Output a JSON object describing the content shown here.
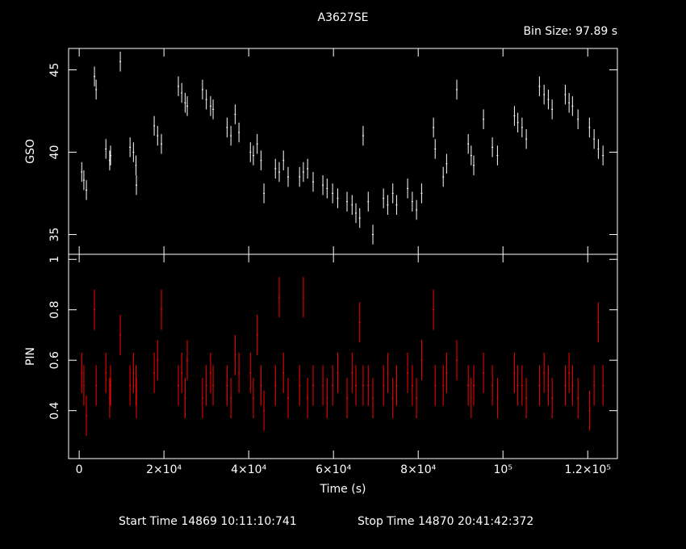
{
  "header": {
    "title": "A3627SE",
    "bin_size": "Bin Size: 97.89 s"
  },
  "footer": {
    "start": "Start Time 14869 10:11:10:741",
    "stop": "Stop Time 14870 20:41:42:372"
  },
  "chart_data": [
    {
      "type": "errorbar",
      "ylabel": "GSO",
      "color": "#ffffff",
      "ylim": [
        33.8,
        46.3
      ],
      "yticks": [
        35,
        40,
        45
      ],
      "x": [
        600,
        1100,
        1700,
        3600,
        4000,
        6300,
        7200,
        7400,
        9700,
        12000,
        12800,
        13400,
        13500,
        17700,
        18500,
        19400,
        23400,
        24200,
        25000,
        25500,
        29100,
        30000,
        31000,
        31600,
        34900,
        35800,
        36800,
        37700,
        40400,
        41100,
        42000,
        42900,
        43600,
        46300,
        47200,
        48200,
        49300,
        52000,
        52900,
        53900,
        55200,
        57500,
        58500,
        59800,
        61000,
        63200,
        64400,
        65300,
        66200,
        67000,
        68200,
        69300,
        71800,
        72800,
        74000,
        74900,
        77500,
        78600,
        79600,
        80800,
        83600,
        84000,
        85900,
        86700,
        89100,
        91800,
        92500,
        93100,
        95400,
        97500,
        98700,
        102700,
        103500,
        104500,
        105500,
        108600,
        109700,
        110700,
        111600,
        114700,
        115600,
        116400,
        117700,
        120400,
        121500,
        122500,
        123600
      ],
      "values": [
        38.8,
        38.3,
        37.7,
        44.6,
        43.8,
        40.2,
        39.5,
        39.8,
        45.5,
        40.3,
        40.0,
        39.2,
        38.0,
        41.6,
        41.0,
        40.5,
        44.0,
        43.6,
        43.0,
        42.8,
        43.8,
        43.2,
        42.8,
        42.6,
        41.5,
        41.0,
        42.3,
        41.2,
        40.0,
        39.8,
        40.5,
        39.5,
        37.5,
        39.0,
        38.8,
        39.5,
        38.5,
        38.5,
        38.8,
        39.0,
        38.2,
        38.0,
        37.8,
        37.5,
        37.2,
        37.0,
        36.8,
        36.3,
        36.0,
        41.0,
        37.0,
        35.0,
        37.2,
        36.8,
        37.5,
        36.8,
        37.8,
        37.0,
        36.5,
        37.5,
        41.5,
        40.2,
        38.5,
        39.3,
        43.8,
        40.5,
        39.8,
        39.2,
        42.0,
        40.3,
        39.8,
        42.2,
        41.8,
        41.5,
        40.8,
        44.0,
        43.5,
        43.2,
        42.6,
        43.5,
        43.0,
        42.8,
        42.0,
        41.5,
        40.8,
        40.2,
        39.8
      ],
      "yerr": 0.6
    },
    {
      "type": "errorbar",
      "ylabel": "PIN",
      "xlabel": "Time (s)",
      "color": "#ff0000",
      "ylim": [
        0.21,
        1.02
      ],
      "yticks": [
        0.4,
        0.6,
        0.8,
        1
      ],
      "xlim": [
        -2500,
        127000
      ],
      "xticks": [
        0,
        {
          "value": 20000,
          "label": "2×10⁴"
        },
        {
          "value": 40000,
          "label": "4×10⁴"
        },
        {
          "value": 60000,
          "label": "6×10⁴"
        },
        {
          "value": 80000,
          "label": "8×10⁴"
        },
        {
          "value": 100000,
          "label": "10⁵"
        },
        {
          "value": 120000,
          "label": "1.2×10⁵"
        }
      ],
      "x": [
        600,
        1100,
        1700,
        3600,
        4000,
        6300,
        7200,
        7400,
        9700,
        12000,
        12800,
        13400,
        13500,
        17700,
        18500,
        19400,
        23400,
        24200,
        25000,
        25500,
        29100,
        30000,
        31000,
        31600,
        34900,
        35800,
        36800,
        37700,
        40400,
        41100,
        42000,
        42900,
        43600,
        46300,
        47200,
        48200,
        49300,
        52000,
        52900,
        53900,
        55200,
        57500,
        58500,
        59800,
        61000,
        63200,
        64400,
        65300,
        66200,
        67000,
        68200,
        69300,
        71800,
        72800,
        74000,
        74900,
        77500,
        78600,
        79600,
        80800,
        83600,
        84000,
        85900,
        86700,
        89100,
        91800,
        92500,
        93100,
        95400,
        97500,
        98700,
        102700,
        103500,
        104500,
        105500,
        108600,
        109700,
        110700,
        111600,
        114700,
        115600,
        116400,
        117700,
        120400,
        121500,
        122500,
        123600
      ],
      "values": [
        0.55,
        0.5,
        0.38,
        0.8,
        0.5,
        0.55,
        0.45,
        0.5,
        0.7,
        0.5,
        0.55,
        0.5,
        0.45,
        0.55,
        0.6,
        0.8,
        0.5,
        0.55,
        0.45,
        0.6,
        0.45,
        0.5,
        0.55,
        0.5,
        0.5,
        0.45,
        0.62,
        0.55,
        0.55,
        0.45,
        0.7,
        0.5,
        0.4,
        0.5,
        0.85,
        0.55,
        0.45,
        0.5,
        0.85,
        0.45,
        0.5,
        0.5,
        0.45,
        0.5,
        0.55,
        0.45,
        0.55,
        0.5,
        0.75,
        0.5,
        0.5,
        0.45,
        0.5,
        0.55,
        0.45,
        0.5,
        0.55,
        0.5,
        0.45,
        0.6,
        0.8,
        0.5,
        0.5,
        0.55,
        0.6,
        0.5,
        0.45,
        0.5,
        0.55,
        0.5,
        0.45,
        0.55,
        0.5,
        0.5,
        0.45,
        0.5,
        0.55,
        0.5,
        0.45,
        0.5,
        0.55,
        0.5,
        0.45,
        0.4,
        0.5,
        0.75,
        0.5
      ],
      "yerr": 0.08
    }
  ]
}
